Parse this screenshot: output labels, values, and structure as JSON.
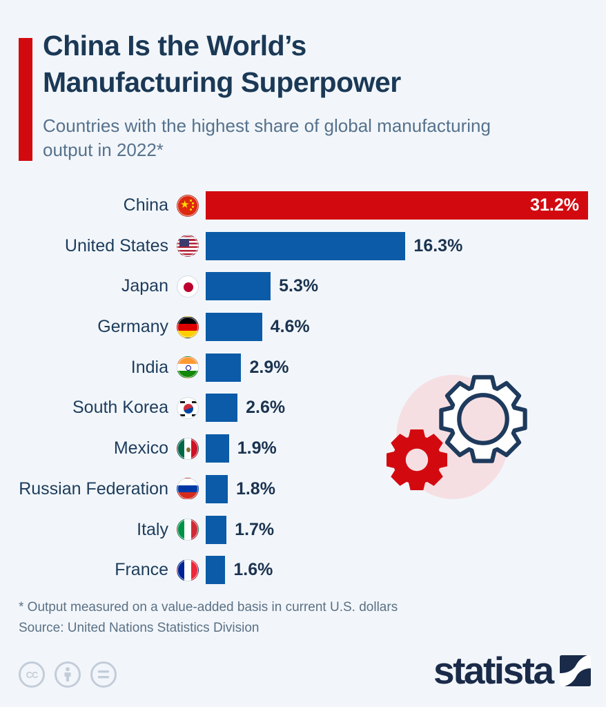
{
  "header": {
    "title_lines": [
      "China Is the World’s",
      "Manufacturing Superpower"
    ],
    "subtitle_lines": [
      "Countries with the highest share of global manufacturing",
      "output in 2022*"
    ]
  },
  "chart_data": {
    "type": "bar",
    "orientation": "horizontal",
    "title": "Countries with the highest share of global manufacturing output in 2022",
    "unit": "%",
    "xlim": [
      0,
      31.2
    ],
    "grid": false,
    "legend": false,
    "rows": [
      {
        "country": "China",
        "flag": "cn",
        "value": 31.2,
        "label": "31.2%",
        "color": "#d20a10",
        "value_label_inside": true
      },
      {
        "country": "United States",
        "flag": "us",
        "value": 16.3,
        "label": "16.3%",
        "color": "#0b5ba8",
        "value_label_inside": false
      },
      {
        "country": "Japan",
        "flag": "jp",
        "value": 5.3,
        "label": "5.3%",
        "color": "#0b5ba8",
        "value_label_inside": false
      },
      {
        "country": "Germany",
        "flag": "de",
        "value": 4.6,
        "label": "4.6%",
        "color": "#0b5ba8",
        "value_label_inside": false
      },
      {
        "country": "India",
        "flag": "in",
        "value": 2.9,
        "label": "2.9%",
        "color": "#0b5ba8",
        "value_label_inside": false
      },
      {
        "country": "South Korea",
        "flag": "kr",
        "value": 2.6,
        "label": "2.6%",
        "color": "#0b5ba8",
        "value_label_inside": false
      },
      {
        "country": "Mexico",
        "flag": "mx",
        "value": 1.9,
        "label": "1.9%",
        "color": "#0b5ba8",
        "value_label_inside": false
      },
      {
        "country": "Russian Federation",
        "flag": "ru",
        "value": 1.8,
        "label": "1.8%",
        "color": "#0b5ba8",
        "value_label_inside": false
      },
      {
        "country": "Italy",
        "flag": "it",
        "value": 1.7,
        "label": "1.7%",
        "color": "#0b5ba8",
        "value_label_inside": false
      },
      {
        "country": "France",
        "flag": "fr",
        "value": 1.6,
        "label": "1.6%",
        "color": "#0b5ba8",
        "value_label_inside": false
      }
    ]
  },
  "footer": {
    "note": "* Output measured on a value-added basis in current U.S. dollars",
    "source": "Source: United Nations Statistics Division"
  },
  "branding": {
    "logo_text": "statista",
    "license": {
      "cc_label": "CC",
      "icons": [
        "cc",
        "attribution",
        "nd"
      ]
    }
  },
  "palette": {
    "background": "#f2f6fa",
    "accent_red": "#d20a10",
    "bar_blue": "#0b5ba8",
    "title_navy": "#1b3956",
    "subtitle_slate": "#56718c",
    "footnote_slate": "#5a7085",
    "decoration_pink": "#f6dfe2",
    "license_gray": "#c3ccd9",
    "logo_navy": "#1a2b49"
  }
}
